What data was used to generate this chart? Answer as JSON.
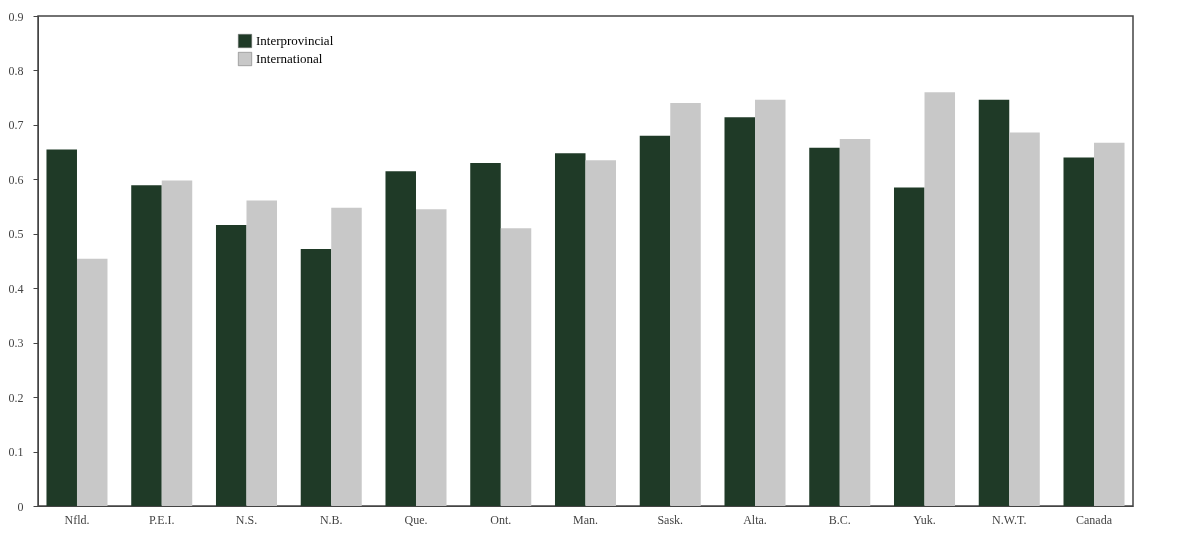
{
  "chart_data": {
    "type": "bar",
    "categories": [
      "Nfld.",
      "P.E.I.",
      "N.S.",
      "N.B.",
      "Que.",
      "Ont.",
      "Man.",
      "Sask.",
      "Alta.",
      "B.C.",
      "Yuk.",
      "N.W.T.",
      "Canada"
    ],
    "series": [
      {
        "name": "Interprovincial",
        "color": "#1f3a27",
        "values": [
          0.655,
          0.589,
          0.516,
          0.472,
          0.615,
          0.63,
          0.648,
          0.68,
          0.714,
          0.658,
          0.585,
          0.746,
          0.64
        ]
      },
      {
        "name": "International",
        "color": "#c8c8c8",
        "values": [
          0.454,
          0.598,
          0.561,
          0.548,
          0.545,
          0.51,
          0.635,
          0.74,
          0.746,
          0.674,
          0.76,
          0.686,
          0.667
        ]
      }
    ],
    "ylim": [
      0,
      0.9
    ],
    "yticks": [
      0,
      0.1,
      0.2,
      0.3,
      0.4,
      0.5,
      0.6,
      0.7,
      0.8,
      0.9
    ],
    "grid": false,
    "legend": "top left"
  }
}
